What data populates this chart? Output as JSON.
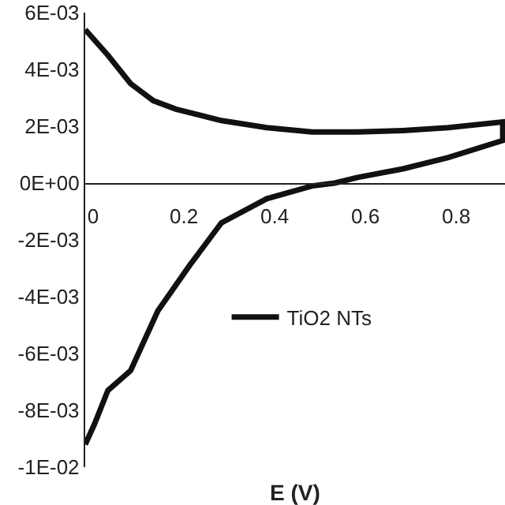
{
  "chart_data": {
    "type": "line",
    "xlabel": "E (V)",
    "x": [
      0,
      0.02,
      0.05,
      0.1,
      0.16,
      0.23,
      0.3,
      0.4,
      0.5,
      0.55,
      0.6,
      0.7,
      0.8,
      0.92,
      0.92,
      0.8,
      0.7,
      0.6,
      0.5,
      0.4,
      0.3,
      0.2,
      0.15,
      0.1,
      0.05,
      0
    ],
    "series": [
      {
        "name": "TiO2 NTs",
        "color": "#111111",
        "values": [
          -0.0092,
          -0.0085,
          -0.0073,
          -0.0066,
          -0.0045,
          -0.0029,
          -0.0014,
          -0.00055,
          -0.0001,
          0,
          0.0002,
          0.0005,
          0.0009,
          0.0015,
          0.00215,
          0.00195,
          0.00185,
          0.0018,
          0.0018,
          0.00195,
          0.0022,
          0.0026,
          0.0029,
          0.0035,
          0.0045,
          0.0054
        ]
      }
    ],
    "xlim": [
      0,
      0.925
    ],
    "xticks": [
      0,
      0.2,
      0.4,
      0.6,
      0.8
    ],
    "ylim": [
      -0.01,
      0.006
    ],
    "yticks": [
      {
        "value": 0.006,
        "label": "6E-03"
      },
      {
        "value": 0.004,
        "label": "4E-03"
      },
      {
        "value": 0.002,
        "label": "2E-03"
      },
      {
        "value": 0,
        "label": "0E+00"
      },
      {
        "value": -0.002,
        "label": "-2E-03"
      },
      {
        "value": -0.004,
        "label": "-4E-03"
      },
      {
        "value": -0.006,
        "label": "-6E-03"
      },
      {
        "value": -0.008,
        "label": "-8E-03"
      },
      {
        "value": -0.01,
        "label": "-1E-02"
      }
    ],
    "legend": "left",
    "marker": "none",
    "line_style": "solid"
  }
}
